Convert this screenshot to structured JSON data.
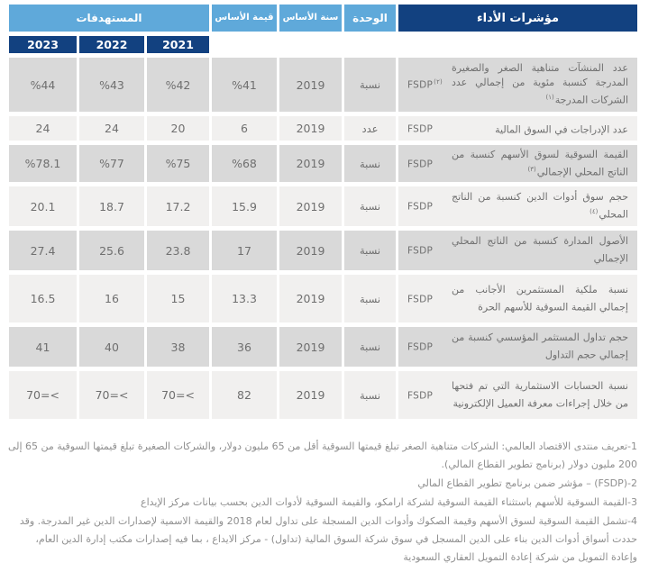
{
  "header": {
    "indicators": "مؤشرات الأداء",
    "unit": "الوحدة",
    "base_year": "سنة الأساس",
    "base_value": "قيمة الأساس",
    "targets": "المستهدفات",
    "years": [
      "2023",
      "2022",
      "2021"
    ]
  },
  "table": {
    "rows": [
      {
        "name": "عدد المنشآت متناهية الصغر والصغيرة المدرجة كنسبة مئوية من إجمالي عدد الشركات المدرجة",
        "name_sup": "(١)",
        "tag": "FSDP",
        "tag_sup": "(٢)",
        "unit": "نسبة",
        "base_year": "2019",
        "base_value": "%41",
        "t2021": "%42",
        "t2022": "%43",
        "t2023": "%44"
      },
      {
        "name": "عدد الإدراجات في السوق المالية",
        "tag": "FSDP",
        "unit": "عدد",
        "base_year": "2019",
        "base_value": "6",
        "t2021": "20",
        "t2022": "24",
        "t2023": "24"
      },
      {
        "name": "القيمة السوقية لسوق الأسهم كنسبة من الناتج المحلي الإجمالي",
        "name_sup": "(٣)",
        "tag": "FSDP",
        "unit": "نسبة",
        "base_year": "2019",
        "base_value": "%68",
        "t2021": "%75",
        "t2022": "%77",
        "t2023": "%78.1"
      },
      {
        "name": "حجم سوق أدوات الدين كنسبة من الناتج المحلي",
        "name_sup": "(٤)",
        "tag": "FSDP",
        "unit": "نسبة",
        "base_year": "2019",
        "base_value": "15.9",
        "t2021": "17.2",
        "t2022": "18.7",
        "t2023": "20.1"
      },
      {
        "name": "الأصول المدارة كنسبة من الناتج المحلي الإجمالي",
        "tag": "FSDP",
        "unit": "نسبة",
        "base_year": "2019",
        "base_value": "17",
        "t2021": "23.8",
        "t2022": "25.6",
        "t2023": "27.4"
      },
      {
        "name": "نسبة ملكية المستثمرين الأجانب من إجمالي القيمة السوقية للأسهم الحرة",
        "tag": "FSDP",
        "unit": "نسبة",
        "base_year": "2019",
        "base_value": "13.3",
        "t2021": "15",
        "t2022": "16",
        "t2023": "16.5"
      },
      {
        "name": "حجم تداول المستثمر المؤسسي كنسبة من إجمالي حجم التداول",
        "tag": "FSDP",
        "unit": "نسبة",
        "base_year": "2019",
        "base_value": "36",
        "t2021": "38",
        "t2022": "40",
        "t2023": "41"
      },
      {
        "name": "نسبة الحسابات الاستثمارية التي تم فتحها من خلال إجراءات معرفة العميل الإلكترونية",
        "tag": "FSDP",
        "unit": "نسبة",
        "base_year": "2019",
        "base_value": "82",
        "t2021": "70=<",
        "t2022": "70=<",
        "t2023": "70=<"
      }
    ]
  },
  "footnotes": [
    "1-تعريف منتدى الاقتصاد العالمي: الشركات متناهية الصغر تبلغ قيمتها السوقية أقل من 65 مليون دولار، والشركات الصغيرة تبلغ قيمتها السوقية من 65 إلى 200 مليون دولار (برنامج تطوير القطاع المالي).",
    "2-(FSDP) – مؤشر ضمن برنامج تطوير القطاع المالي",
    "3-القيمة السوقية للأسهم باستثناء القيمة السوقية لشركة ارامكو، والقيمة السوقية لأدوات الدين بحسب بيانات مركز الإيداع",
    "4-تشمل القيمة السوقية لسوق الأسهم وقيمة الصكوك وأدوات الدين المسجلة على تداول لعام 2018 والقيمة الاسمية لإصدارات الدين غير المدرجة. وقد حددت أسواق أدوات الدين بناء على الدين المسجل في سوق شركة السوق المالية (تداول) - مركز الايداع ، بما فيه إصدارات مكتب إدارة الدين العام، وإعادة التمويل من شركة إعادة التمويل العقاري السعودية"
  ],
  "colors": {
    "navy": "#124180",
    "lblue": "#5fa9da",
    "row-odd": "#d9d9d9",
    "row-even": "#f1f0ef",
    "cell-text": "#6f6f6f",
    "note-text": "#8f8f8f"
  }
}
